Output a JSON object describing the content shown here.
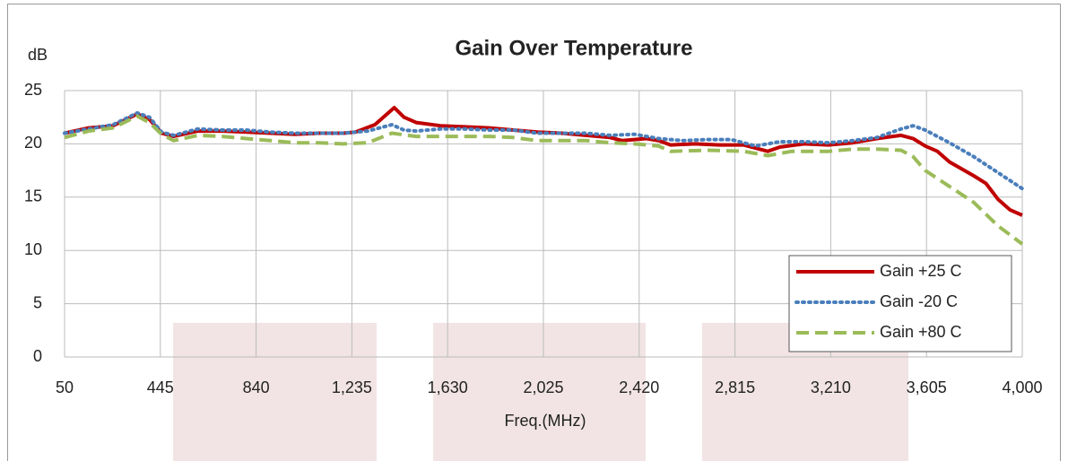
{
  "chart_data": {
    "type": "line",
    "title": "Gain Over Temperature",
    "y_label": "dB",
    "x_label": "Freq.(MHz)",
    "xlim": [
      50,
      4000
    ],
    "xticks": [
      50,
      445,
      840,
      {
        "value": 1235,
        "label": "1,235"
      },
      {
        "value": 1630,
        "label": "1,630"
      },
      {
        "value": 2025,
        "label": "2,025"
      },
      {
        "value": 2420,
        "label": "2,420"
      },
      {
        "value": 2815,
        "label": "2,815"
      },
      {
        "value": 3210,
        "label": "3,210"
      },
      {
        "value": 3605,
        "label": "3,605"
      },
      {
        "value": 4000,
        "label": "4,000"
      }
    ],
    "ylim": [
      0,
      25
    ],
    "yticks": [
      0,
      5,
      10,
      15,
      20,
      25
    ],
    "grid": true,
    "legend": "lower right",
    "series": [
      {
        "name": "Gain +25 C",
        "color": "#c00000",
        "style": "solid",
        "x": [
          50,
          150,
          250,
          350,
          400,
          450,
          500,
          600,
          700,
          800,
          900,
          1000,
          1100,
          1200,
          1250,
          1330,
          1410,
          1450,
          1500,
          1600,
          1700,
          1800,
          1900,
          2000,
          2100,
          2200,
          2300,
          2350,
          2450,
          2500,
          2550,
          2650,
          2750,
          2850,
          2950,
          3000,
          3100,
          3200,
          3300,
          3400,
          3500,
          3550,
          3600,
          3650,
          3700,
          3800,
          3850,
          3900,
          3950,
          4000
        ],
        "values": [
          21,
          21.5,
          21.7,
          22.8,
          22.3,
          21,
          20.7,
          21.2,
          21.2,
          21.1,
          21,
          20.9,
          21,
          21,
          21.1,
          21.8,
          23.4,
          22.5,
          22,
          21.7,
          21.6,
          21.5,
          21.3,
          21.1,
          21,
          20.8,
          20.6,
          20.3,
          20.5,
          20.3,
          19.9,
          20,
          19.9,
          19.9,
          19.3,
          19.7,
          20,
          19.9,
          20.1,
          20.5,
          20.8,
          20.5,
          19.8,
          19.3,
          18.3,
          17,
          16.3,
          14.8,
          13.8,
          13.3
        ]
      },
      {
        "name": "Gain -20 C",
        "color": "#4a7ebb",
        "style": "dotted",
        "x": [
          50,
          150,
          250,
          350,
          400,
          450,
          500,
          600,
          700,
          800,
          900,
          1000,
          1100,
          1200,
          1300,
          1400,
          1450,
          1500,
          1600,
          1700,
          1800,
          1900,
          2000,
          2100,
          2200,
          2300,
          2400,
          2500,
          2600,
          2700,
          2800,
          2900,
          3000,
          3100,
          3200,
          3300,
          3400,
          3500,
          3550,
          3600,
          3700,
          3800,
          3900,
          4000
        ],
        "values": [
          21,
          21.4,
          21.8,
          22.9,
          22.5,
          21.1,
          20.8,
          21.4,
          21.3,
          21.3,
          21.1,
          21,
          21,
          21,
          21.2,
          21.8,
          21.3,
          21.2,
          21.4,
          21.4,
          21.3,
          21.3,
          21,
          21,
          21,
          20.8,
          20.9,
          20.5,
          20.3,
          20.4,
          20.4,
          19.8,
          20.2,
          20.2,
          20.1,
          20.3,
          20.6,
          21.4,
          21.7,
          21.3,
          20.1,
          18.8,
          17.3,
          15.8
        ]
      },
      {
        "name": "Gain +80 C",
        "color": "#9bbb59",
        "style": "dashed",
        "x": [
          50,
          150,
          250,
          350,
          400,
          450,
          500,
          600,
          700,
          800,
          900,
          1000,
          1100,
          1200,
          1300,
          1400,
          1500,
          1600,
          1700,
          1800,
          1900,
          2000,
          2100,
          2200,
          2300,
          2400,
          2500,
          2550,
          2700,
          2850,
          2950,
          3050,
          3200,
          3300,
          3400,
          3500,
          3550,
          3600,
          3700,
          3800,
          3900,
          4000
        ],
        "values": [
          20.6,
          21.2,
          21.5,
          22.6,
          22,
          20.9,
          20.3,
          20.8,
          20.7,
          20.5,
          20.3,
          20.1,
          20.1,
          20,
          20.1,
          21,
          20.7,
          20.7,
          20.7,
          20.7,
          20.6,
          20.3,
          20.3,
          20.3,
          20.1,
          20,
          19.8,
          19.3,
          19.4,
          19.3,
          18.9,
          19.3,
          19.3,
          19.5,
          19.5,
          19.4,
          18.8,
          17.5,
          16,
          14.5,
          12.3,
          10.6
        ]
      }
    ]
  }
}
